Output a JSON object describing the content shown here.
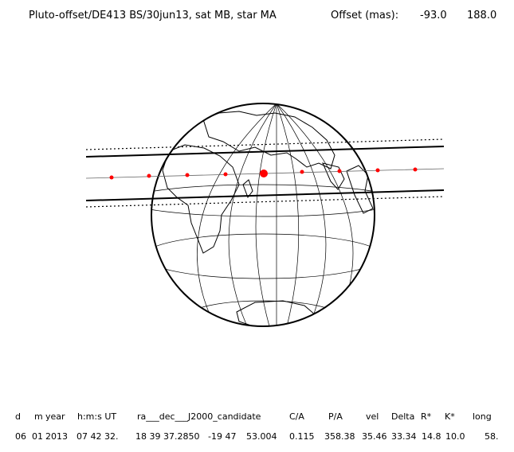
{
  "header": {
    "title": "Pluto-offset/DE413 BS/30jun13, sat MB, star MA",
    "offset_label": "Offset (mas):",
    "offset_x": "-93.0",
    "offset_y": "188.0"
  },
  "table": {
    "headers": [
      "d",
      "m",
      "year",
      "h:m:s UT",
      "ra___dec___J2000_candidate",
      "C/A",
      "P/A",
      "vel",
      "Delta",
      "R*",
      "K*",
      "long"
    ],
    "values": [
      "06",
      "01",
      "2013",
      "07 42 32.",
      "18 39 37.2850",
      "-19 47",
      "53.004",
      "0.115",
      "358.38",
      "35.46",
      "33.34",
      "14.8",
      "10.0",
      "58."
    ]
  },
  "colors": {
    "lines": "#000000",
    "track": "#666666",
    "dots": "#ff0000"
  }
}
